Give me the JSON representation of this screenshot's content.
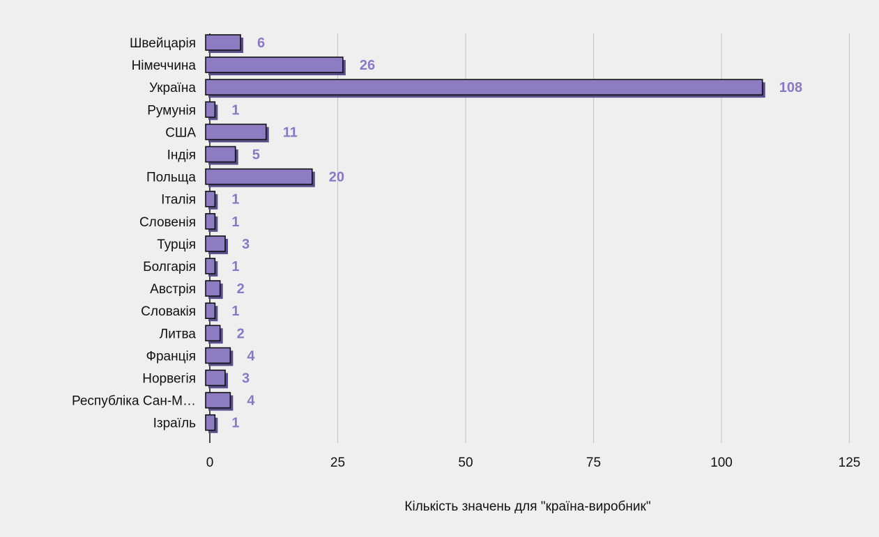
{
  "chart_data": {
    "type": "bar",
    "orientation": "horizontal",
    "categories": [
      "Швейцарія",
      "Німеччина",
      "Україна",
      "Румунія",
      "США",
      "Індія",
      "Польща",
      "Італія",
      "Словенія",
      "Турція",
      "Болгарія",
      "Австрія",
      "Словакія",
      "Литва",
      "Франція",
      "Норвегія",
      "Республіка Сан-М…",
      "Ізраїль"
    ],
    "values": [
      6,
      26,
      108,
      1,
      11,
      5,
      20,
      1,
      1,
      3,
      1,
      2,
      1,
      2,
      4,
      3,
      4,
      1
    ],
    "xlabel": "Кількість значень для \"країна-виробник\"",
    "ylabel": "",
    "xlim": [
      0,
      125
    ],
    "xticks": [
      0,
      25,
      50,
      75,
      100,
      125
    ],
    "grid": true,
    "legend": "none",
    "colors": {
      "bar_fill": "#8e7cc3",
      "bar_shadow": "#5a4d8a",
      "bar_outline": "#111111",
      "value_label": "#8a78c2",
      "gridline": "#c8c8c8",
      "background": "#efefef"
    }
  }
}
